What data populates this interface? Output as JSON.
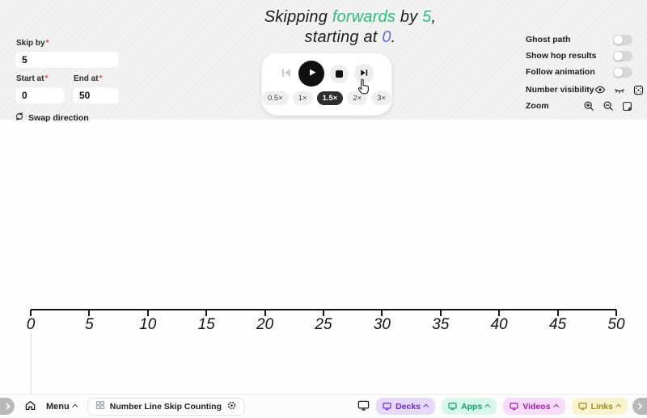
{
  "colors": {
    "green": "#2abf7d",
    "indigo": "#6467ee",
    "required": "#f0435f"
  },
  "title": {
    "line1_lead": "Skipping",
    "direction": "forwards",
    "line1_mid": "by",
    "skip_value": "5",
    "line1_end": ",",
    "line2_lead": "starting at",
    "start_value": "0",
    "line2_end": "."
  },
  "controls": {
    "required_mark": "*",
    "skip_by_label": "Skip by",
    "skip_value": "5",
    "start_label": "Start at",
    "start_value": "0",
    "end_label": "End at",
    "end_value": "50",
    "swap_label": "Swap direction"
  },
  "playback": {
    "buttons": [
      "skip-to-start",
      "play",
      "stop",
      "skip-to-end"
    ],
    "speeds": [
      {
        "label": "0.5×",
        "selected": false
      },
      {
        "label": "1×",
        "selected": false
      },
      {
        "label": "1.5×",
        "selected": true
      },
      {
        "label": "2×",
        "selected": false
      },
      {
        "label": "3×",
        "selected": false
      }
    ]
  },
  "settings": {
    "toggles": [
      {
        "label": "Ghost path",
        "on": false
      },
      {
        "label": "Show hop results",
        "on": false
      },
      {
        "label": "Follow animation",
        "on": false
      }
    ],
    "number_visibility_label": "Number visibility",
    "number_visibility_icons": [
      "eye-open-icon",
      "eye-closed-icon",
      "numbers-partial-icon"
    ],
    "zoom_label": "Zoom",
    "zoom_icons": [
      "zoom-in-icon",
      "zoom-out-icon",
      "zoom-fit-icon"
    ]
  },
  "numberline": {
    "labels": [
      "0",
      "5",
      "10",
      "15",
      "20",
      "25",
      "30",
      "35",
      "40",
      "45",
      "50"
    ],
    "marker_position": "0"
  },
  "dock": {
    "menu_label": "Menu",
    "app_title": "Number Line Skip Counting",
    "buttons": [
      {
        "label": "Decks",
        "bg": "#e5dafa",
        "fg": "#6d28d9"
      },
      {
        "label": "Apps",
        "bg": "#d7f7e9",
        "fg": "#0d9e6e"
      },
      {
        "label": "Videos",
        "bg": "#f7ddf9",
        "fg": "#a21caf"
      },
      {
        "label": "Links",
        "bg": "#f9f3d0",
        "fg": "#998f10"
      }
    ]
  }
}
